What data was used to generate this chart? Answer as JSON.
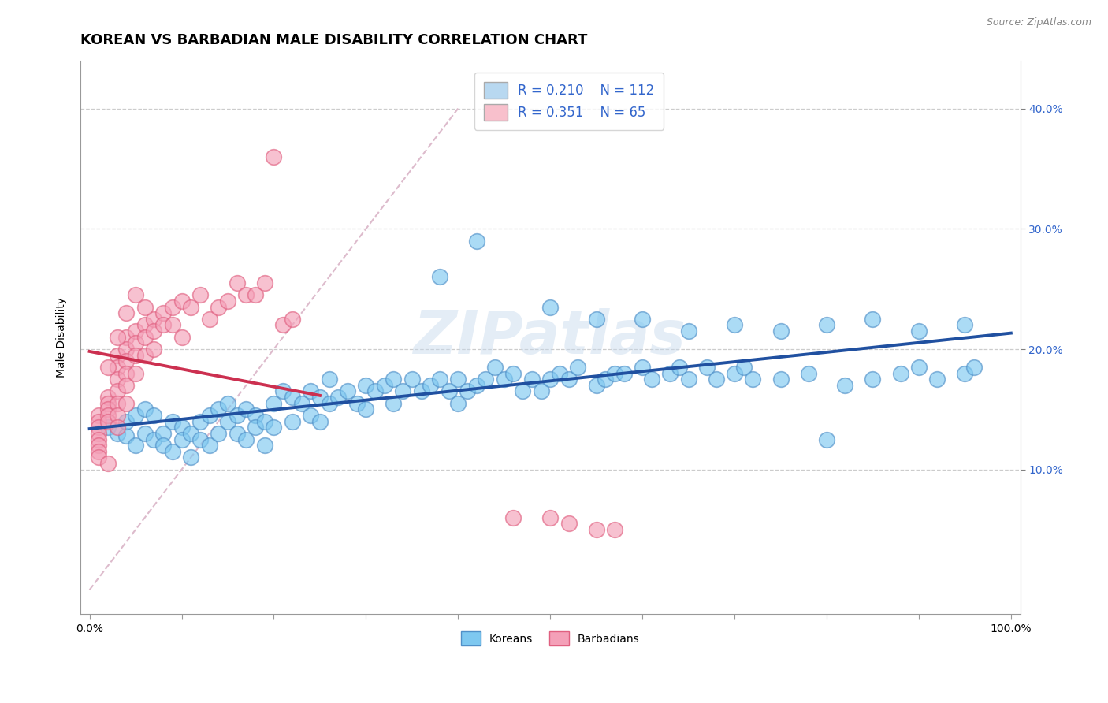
{
  "title": "KOREAN VS BARBADIAN MALE DISABILITY CORRELATION CHART",
  "source": "Source: ZipAtlas.com",
  "ylabel": "Male Disability",
  "xlim": [
    -0.01,
    1.01
  ],
  "ylim": [
    -0.02,
    0.44
  ],
  "yticks": [
    0.1,
    0.2,
    0.3,
    0.4
  ],
  "ytick_labels": [
    "10.0%",
    "20.0%",
    "30.0%",
    "40.0%"
  ],
  "xtick_positions": [
    0.0,
    0.1,
    0.2,
    0.3,
    0.4,
    0.5,
    0.6,
    0.7,
    0.8,
    0.9,
    1.0
  ],
  "xtick_labels_sparse": [
    "0.0%",
    "",
    "",
    "",
    "",
    "",
    "",
    "",
    "",
    "",
    "100.0%"
  ],
  "korean_color": "#7EC8F0",
  "barbadian_color": "#F4A0B8",
  "korean_edge": "#5090C8",
  "barbadian_edge": "#E06080",
  "regression_korean_color": "#2050A0",
  "regression_barbadian_color": "#CC3050",
  "diag_color": "#DDBBCC",
  "legend_box_korean": "#B8D8F0",
  "legend_box_barbadian": "#F8C0CC",
  "legend_text_color": "#3366CC",
  "R_korean": 0.21,
  "N_korean": 112,
  "R_barbadian": 0.351,
  "N_barbadian": 65,
  "watermark": "ZIPatlas",
  "title_fontsize": 13,
  "axis_label_fontsize": 10,
  "tick_fontsize": 10,
  "legend_fontsize": 12,
  "korean_x": [
    0.02,
    0.03,
    0.04,
    0.04,
    0.05,
    0.05,
    0.06,
    0.06,
    0.07,
    0.07,
    0.08,
    0.08,
    0.09,
    0.09,
    0.1,
    0.1,
    0.11,
    0.11,
    0.12,
    0.12,
    0.13,
    0.13,
    0.14,
    0.14,
    0.15,
    0.15,
    0.16,
    0.16,
    0.17,
    0.17,
    0.18,
    0.18,
    0.19,
    0.19,
    0.2,
    0.2,
    0.21,
    0.22,
    0.22,
    0.23,
    0.24,
    0.24,
    0.25,
    0.25,
    0.26,
    0.26,
    0.27,
    0.28,
    0.29,
    0.3,
    0.3,
    0.31,
    0.32,
    0.33,
    0.33,
    0.34,
    0.35,
    0.36,
    0.37,
    0.38,
    0.39,
    0.4,
    0.4,
    0.41,
    0.42,
    0.43,
    0.44,
    0.45,
    0.46,
    0.47,
    0.48,
    0.49,
    0.5,
    0.51,
    0.52,
    0.53,
    0.55,
    0.56,
    0.57,
    0.58,
    0.6,
    0.61,
    0.63,
    0.64,
    0.65,
    0.67,
    0.68,
    0.7,
    0.71,
    0.72,
    0.75,
    0.78,
    0.8,
    0.82,
    0.85,
    0.88,
    0.9,
    0.92,
    0.95,
    0.96,
    0.38,
    0.42,
    0.5,
    0.55,
    0.6,
    0.65,
    0.7,
    0.75,
    0.8,
    0.85,
    0.9,
    0.95
  ],
  "korean_y": [
    0.135,
    0.13,
    0.128,
    0.14,
    0.145,
    0.12,
    0.15,
    0.13,
    0.145,
    0.125,
    0.13,
    0.12,
    0.14,
    0.115,
    0.135,
    0.125,
    0.13,
    0.11,
    0.14,
    0.125,
    0.145,
    0.12,
    0.15,
    0.13,
    0.155,
    0.14,
    0.145,
    0.13,
    0.15,
    0.125,
    0.145,
    0.135,
    0.14,
    0.12,
    0.155,
    0.135,
    0.165,
    0.16,
    0.14,
    0.155,
    0.165,
    0.145,
    0.16,
    0.14,
    0.155,
    0.175,
    0.16,
    0.165,
    0.155,
    0.17,
    0.15,
    0.165,
    0.17,
    0.155,
    0.175,
    0.165,
    0.175,
    0.165,
    0.17,
    0.175,
    0.165,
    0.155,
    0.175,
    0.165,
    0.17,
    0.175,
    0.185,
    0.175,
    0.18,
    0.165,
    0.175,
    0.165,
    0.175,
    0.18,
    0.175,
    0.185,
    0.17,
    0.175,
    0.18,
    0.18,
    0.185,
    0.175,
    0.18,
    0.185,
    0.175,
    0.185,
    0.175,
    0.18,
    0.185,
    0.175,
    0.175,
    0.18,
    0.125,
    0.17,
    0.175,
    0.18,
    0.185,
    0.175,
    0.18,
    0.185,
    0.26,
    0.29,
    0.235,
    0.225,
    0.225,
    0.215,
    0.22,
    0.215,
    0.22,
    0.225,
    0.215,
    0.22
  ],
  "barbadian_x": [
    0.01,
    0.01,
    0.01,
    0.01,
    0.01,
    0.01,
    0.01,
    0.01,
    0.02,
    0.02,
    0.02,
    0.02,
    0.02,
    0.02,
    0.03,
    0.03,
    0.03,
    0.03,
    0.03,
    0.03,
    0.03,
    0.04,
    0.04,
    0.04,
    0.04,
    0.04,
    0.04,
    0.05,
    0.05,
    0.05,
    0.05,
    0.06,
    0.06,
    0.06,
    0.07,
    0.07,
    0.07,
    0.08,
    0.08,
    0.09,
    0.09,
    0.1,
    0.1,
    0.11,
    0.12,
    0.13,
    0.14,
    0.15,
    0.16,
    0.17,
    0.18,
    0.19,
    0.2,
    0.21,
    0.22,
    0.02,
    0.03,
    0.04,
    0.46,
    0.5,
    0.52,
    0.55,
    0.57,
    0.05,
    0.06
  ],
  "barbadian_y": [
    0.145,
    0.14,
    0.135,
    0.13,
    0.125,
    0.12,
    0.115,
    0.11,
    0.16,
    0.155,
    0.15,
    0.145,
    0.14,
    0.105,
    0.195,
    0.185,
    0.175,
    0.165,
    0.155,
    0.145,
    0.135,
    0.21,
    0.2,
    0.19,
    0.18,
    0.17,
    0.155,
    0.215,
    0.205,
    0.195,
    0.18,
    0.22,
    0.21,
    0.195,
    0.225,
    0.215,
    0.2,
    0.23,
    0.22,
    0.235,
    0.22,
    0.21,
    0.24,
    0.235,
    0.245,
    0.225,
    0.235,
    0.24,
    0.255,
    0.245,
    0.245,
    0.255,
    0.36,
    0.22,
    0.225,
    0.185,
    0.21,
    0.23,
    0.06,
    0.06,
    0.055,
    0.05,
    0.05,
    0.245,
    0.235
  ]
}
